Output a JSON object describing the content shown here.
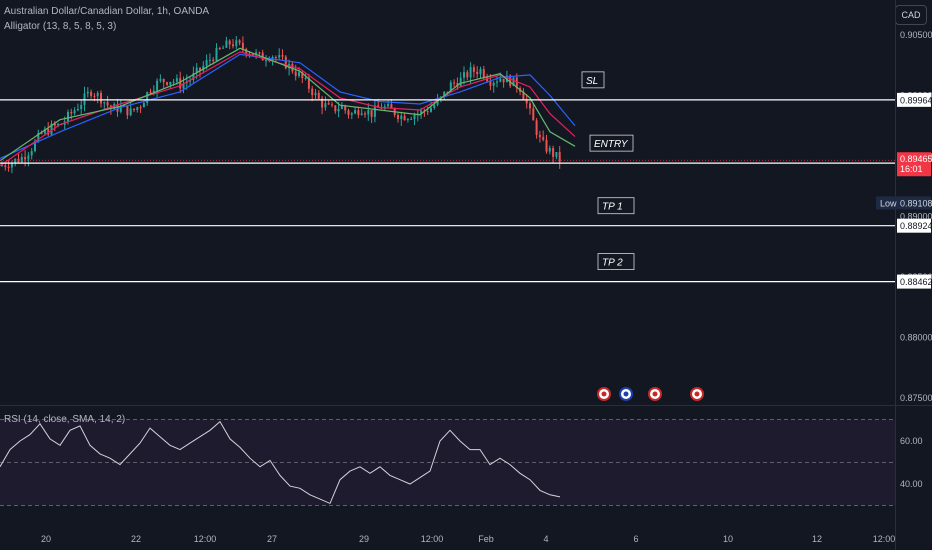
{
  "header": {
    "symbol": "Australian Dollar/Canadian Dollar, 1h, OANDA",
    "indicator": "Alligator (13, 8, 5, 8, 5, 3)",
    "unit": "CAD"
  },
  "rsi_label": "RSI (14, close, SMA, 14, 2)",
  "colors": {
    "background": "#131722",
    "up": "#26a69a",
    "down": "#ef5350",
    "jaw": "#2962ff",
    "teeth": "#e91e63",
    "lips": "#66bb6a",
    "rsi_line": "#d1d4dc",
    "rsi_band": "#1e1b2e",
    "level_line": "#ffffff",
    "last_price_bg": "#f23645",
    "low_bg": "#1e2a44"
  },
  "chart_data": [
    {
      "type": "candlestick",
      "title": "Australian Dollar/Canadian Dollar, 1h, OANDA",
      "ylim": [
        0.875,
        0.9075
      ],
      "y_ticks": [
        "0.90500",
        "0.90000",
        "0.89500",
        "0.89000",
        "0.88500",
        "0.88000",
        "0.87500"
      ],
      "x_ticks": [
        "20",
        "22",
        "12:00",
        "27",
        "29",
        "12:00",
        "Feb",
        "4",
        "6",
        "10",
        "12",
        "12:00"
      ],
      "close_path_x": [
        0,
        10,
        20,
        30,
        40,
        50,
        60,
        70,
        80,
        90,
        100,
        110,
        120,
        130,
        140,
        150,
        160,
        170,
        180,
        190,
        200,
        210,
        220,
        230,
        240,
        250,
        260,
        270,
        280,
        290,
        300,
        310,
        320,
        330,
        340,
        350,
        360,
        370,
        380,
        390,
        400,
        410,
        420,
        430,
        440,
        450,
        460,
        470,
        480,
        490,
        500,
        510,
        520,
        530,
        540,
        550,
        560
      ],
      "close_path": [
        0.8942,
        0.8945,
        0.8948,
        0.8956,
        0.8968,
        0.8973,
        0.8976,
        0.8985,
        0.8994,
        0.9004,
        0.8998,
        0.8989,
        0.899,
        0.8986,
        0.8993,
        0.9007,
        0.9012,
        0.9013,
        0.9009,
        0.9014,
        0.9022,
        0.9031,
        0.9038,
        0.9044,
        0.904,
        0.9036,
        0.9031,
        0.9034,
        0.9029,
        0.9023,
        0.9015,
        0.9005,
        0.8994,
        0.8988,
        0.8991,
        0.8984,
        0.899,
        0.8985,
        0.8991,
        0.8988,
        0.8983,
        0.8984,
        0.8986,
        0.899,
        0.8997,
        0.9009,
        0.9013,
        0.902,
        0.9021,
        0.9012,
        0.9015,
        0.9012,
        0.9006,
        0.8983,
        0.8961,
        0.8953,
        0.8946
      ],
      "jaw_x": [
        0,
        60,
        120,
        180,
        240,
        300,
        340,
        380,
        420,
        460,
        500,
        530,
        550,
        575
      ],
      "jaw": [
        0.8948,
        0.897,
        0.899,
        0.9003,
        0.9034,
        0.9027,
        0.9003,
        0.8995,
        0.8993,
        0.9003,
        0.9015,
        0.9017,
        0.9,
        0.8975
      ],
      "teeth_x": [
        0,
        60,
        120,
        180,
        240,
        300,
        340,
        380,
        420,
        460,
        500,
        530,
        550,
        575
      ],
      "teeth": [
        0.8942,
        0.8976,
        0.8993,
        0.9008,
        0.9036,
        0.9022,
        0.8998,
        0.899,
        0.8988,
        0.9007,
        0.9017,
        0.9007,
        0.8985,
        0.8966
      ],
      "lips_x": [
        0,
        60,
        120,
        180,
        240,
        300,
        340,
        380,
        420,
        460,
        500,
        530,
        550,
        575
      ],
      "lips": [
        0.8946,
        0.898,
        0.8991,
        0.9011,
        0.9039,
        0.902,
        0.8992,
        0.8988,
        0.8984,
        0.901,
        0.9018,
        0.8998,
        0.897,
        0.8958
      ],
      "levels": [
        {
          "name": "SL",
          "value": 0.89964
        },
        {
          "name": "ENTRY",
          "value": 0.89441
        },
        {
          "name": "TP 1",
          "value": 0.88924
        },
        {
          "name": "TP 2",
          "value": 0.88462
        }
      ],
      "price_labels": {
        "last": "0.89465",
        "countdown": "16:01",
        "low_label": "Low",
        "low": "0.89108"
      },
      "event_markers": [
        "CA",
        "AU",
        "CA",
        "CA"
      ]
    },
    {
      "type": "line",
      "title": "RSI (14, close, SMA, 14, 2)",
      "ylim": [
        25,
        75
      ],
      "y_ticks": [
        "60.00",
        "40.00"
      ],
      "bands": [
        70,
        50,
        30
      ],
      "x": [
        0,
        10,
        20,
        30,
        40,
        50,
        60,
        70,
        80,
        90,
        100,
        110,
        120,
        130,
        140,
        150,
        160,
        170,
        180,
        190,
        200,
        210,
        220,
        230,
        240,
        250,
        260,
        270,
        280,
        290,
        300,
        310,
        320,
        330,
        340,
        350,
        360,
        370,
        380,
        390,
        400,
        410,
        420,
        430,
        440,
        450,
        460,
        470,
        480,
        490,
        500,
        510,
        520,
        530,
        540,
        550,
        560
      ],
      "values": [
        48,
        56,
        60,
        63,
        68,
        61,
        58,
        65,
        67,
        58,
        54,
        52,
        49,
        54,
        59,
        66,
        62,
        58,
        56,
        59,
        62,
        65,
        69,
        61,
        57,
        52,
        48,
        51,
        44,
        39,
        38,
        35,
        33,
        31,
        42,
        46,
        48,
        45,
        48,
        44,
        42,
        40,
        43,
        46,
        60,
        65,
        60,
        56,
        56,
        49,
        52,
        49,
        45,
        42,
        37,
        35,
        34
      ]
    }
  ]
}
